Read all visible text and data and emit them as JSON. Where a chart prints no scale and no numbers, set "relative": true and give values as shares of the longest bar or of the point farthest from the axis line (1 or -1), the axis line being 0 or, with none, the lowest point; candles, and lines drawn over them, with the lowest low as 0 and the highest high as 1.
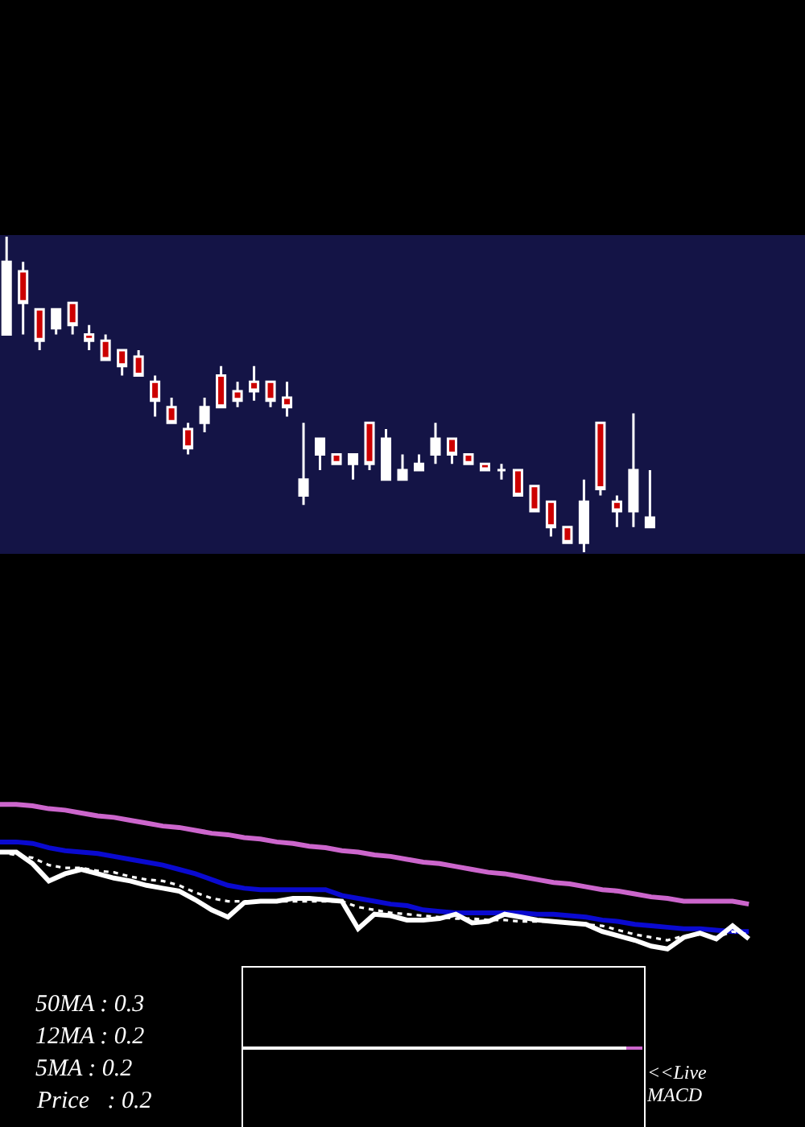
{
  "chart_data": [
    {
      "type": "candlestick",
      "relative": true,
      "categories": [
        null,
        null,
        null,
        null,
        null,
        null,
        null,
        null,
        null,
        null,
        null,
        null,
        null,
        null,
        null,
        null,
        null,
        null,
        null,
        null,
        null,
        null,
        null,
        null,
        null,
        null,
        null,
        null,
        null,
        null,
        null,
        null,
        null,
        null,
        null,
        null,
        null,
        null,
        null,
        null
      ],
      "ohlc": [
        [
          0.69,
          1,
          0.69,
          0.92
        ],
        [
          0.89,
          0.92,
          0.69,
          0.79
        ],
        [
          0.77,
          0.77,
          0.64,
          0.67
        ],
        [
          0.71,
          0.77,
          0.69,
          0.77
        ],
        [
          0.79,
          0.79,
          0.69,
          0.72
        ],
        [
          0.69,
          0.72,
          0.64,
          0.67
        ],
        [
          0.67,
          0.69,
          0.61,
          0.61
        ],
        [
          0.64,
          0.64,
          0.56,
          0.59
        ],
        [
          0.62,
          0.64,
          0.56,
          0.56
        ],
        [
          0.54,
          0.56,
          0.43,
          0.48
        ],
        [
          0.46,
          0.49,
          0.41,
          0.41
        ],
        [
          0.39,
          0.41,
          0.31,
          0.33
        ],
        [
          0.41,
          0.49,
          0.38,
          0.46
        ],
        [
          0.56,
          0.59,
          0.46,
          0.46
        ],
        [
          0.51,
          0.54,
          0.46,
          0.48
        ],
        [
          0.54,
          0.59,
          0.48,
          0.51
        ],
        [
          0.54,
          0.54,
          0.46,
          0.48
        ],
        [
          0.49,
          0.54,
          0.43,
          0.46
        ],
        [
          0.18,
          0.41,
          0.15,
          0.23
        ],
        [
          0.31,
          0.36,
          0.26,
          0.36
        ],
        [
          0.31,
          0.31,
          0.28,
          0.28
        ],
        [
          0.28,
          0.31,
          0.23,
          0.31
        ],
        [
          0.41,
          0.41,
          0.26,
          0.28
        ],
        [
          0.23,
          0.39,
          0.23,
          0.36
        ],
        [
          0.23,
          0.31,
          0.23,
          0.26
        ],
        [
          0.26,
          0.31,
          0.26,
          0.28
        ],
        [
          0.31,
          0.41,
          0.28,
          0.36
        ],
        [
          0.36,
          0.36,
          0.28,
          0.31
        ],
        [
          0.31,
          0.31,
          0.28,
          0.28
        ],
        [
          0.28,
          0.28,
          0.26,
          0.26
        ],
        [
          0.26,
          0.28,
          0.23,
          0.26
        ],
        [
          0.26,
          0.26,
          0.18,
          0.18
        ],
        [
          0.21,
          0.21,
          0.13,
          0.13
        ],
        [
          0.16,
          0.16,
          0.05,
          0.08
        ],
        [
          0.08,
          0.08,
          0.03,
          0.03
        ],
        [
          0.03,
          0.23,
          0,
          0.16
        ],
        [
          0.41,
          0.41,
          0.18,
          0.2
        ],
        [
          0.16,
          0.18,
          0.08,
          0.13
        ],
        [
          0.13,
          0.44,
          0.08,
          0.26
        ],
        [
          0.08,
          0.26,
          0.08,
          0.11
        ]
      ],
      "colors": [
        "#ffffff",
        "#cc0000",
        "#cc0000",
        "#ffffff",
        "#cc0000",
        "#cc0000",
        "#cc0000",
        "#cc0000",
        "#cc0000",
        "#cc0000",
        "#cc0000",
        "#cc0000",
        "#ffffff",
        "#cc0000",
        "#cc0000",
        "#cc0000",
        "#cc0000",
        "#cc0000",
        "#ffffff",
        "#ffffff",
        "#cc0000",
        "#ffffff",
        "#cc0000",
        "#ffffff",
        "#ffffff",
        "#ffffff",
        "#ffffff",
        "#cc0000",
        "#cc0000",
        "#cc0000",
        "#ffffff",
        "#cc0000",
        "#cc0000",
        "#cc0000",
        "#cc0000",
        "#ffffff",
        "#cc0000",
        "#cc0000",
        "#ffffff",
        "#ffffff"
      ]
    },
    {
      "type": "line",
      "relative": true,
      "categories": [
        null,
        null,
        null,
        null,
        null,
        null,
        null,
        null,
        null,
        null,
        null,
        null,
        null,
        null,
        null,
        null,
        null,
        null,
        null,
        null,
        null,
        null,
        null,
        null,
        null,
        null,
        null,
        null,
        null,
        null,
        null,
        null,
        null,
        null,
        null,
        null,
        null,
        null,
        null,
        null,
        null,
        null,
        null,
        null,
        null,
        null,
        null
      ],
      "series": [
        {
          "color": "#cc66cc",
          "values": [
            1,
            1,
            0.99,
            0.97,
            0.96,
            0.94,
            0.92,
            0.91,
            0.89,
            0.87,
            0.85,
            0.84,
            0.82,
            0.8,
            0.79,
            0.77,
            0.76,
            0.74,
            0.73,
            0.71,
            0.7,
            0.68,
            0.67,
            0.65,
            0.64,
            0.62,
            0.6,
            0.59,
            0.57,
            0.55,
            0.53,
            0.52,
            0.5,
            0.48,
            0.46,
            0.45,
            0.43,
            0.41,
            0.4,
            0.38,
            0.36,
            0.35,
            0.33,
            0.33,
            0.33,
            0.33,
            0.31
          ]
        },
        {
          "color": "#0a0ad0",
          "values": [
            0.74,
            0.74,
            0.73,
            0.7,
            0.68,
            0.67,
            0.66,
            0.64,
            0.62,
            0.6,
            0.58,
            0.55,
            0.52,
            0.48,
            0.44,
            0.42,
            0.41,
            0.41,
            0.41,
            0.41,
            0.41,
            0.37,
            0.35,
            0.33,
            0.31,
            0.3,
            0.27,
            0.26,
            0.25,
            0.25,
            0.25,
            0.25,
            0.25,
            0.24,
            0.24,
            0.23,
            0.22,
            0.2,
            0.19,
            0.17,
            0.16,
            0.15,
            0.14,
            0.14,
            0.13,
            0.12,
            0.12
          ]
        },
        {
          "color": "#ffffff",
          "line_style": "dotted",
          "values": [
            0.67,
            0.65,
            0.63,
            0.58,
            0.56,
            0.56,
            0.54,
            0.53,
            0.5,
            0.48,
            0.47,
            0.44,
            0.39,
            0.35,
            0.33,
            0.33,
            0.33,
            0.33,
            0.33,
            0.33,
            0.33,
            0.33,
            0.29,
            0.27,
            0.25,
            0.24,
            0.23,
            0.22,
            0.21,
            0.21,
            0.2,
            0.2,
            0.19,
            0.19,
            0.19,
            0.18,
            0.17,
            0.16,
            0.13,
            0.1,
            0.08,
            0.06,
            0.09,
            0.1,
            0.08,
            0.12,
            0.1
          ]
        },
        {
          "color": "#ffffff",
          "values": [
            0.67,
            0.67,
            0.59,
            0.47,
            0.52,
            0.55,
            0.52,
            0.49,
            0.47,
            0.44,
            0.42,
            0.4,
            0.34,
            0.27,
            0.22,
            0.32,
            0.33,
            0.33,
            0.35,
            0.35,
            0.34,
            0.33,
            0.14,
            0.24,
            0.23,
            0.2,
            0.2,
            0.21,
            0.24,
            0.18,
            0.19,
            0.24,
            0.22,
            0.2,
            0.19,
            0.18,
            0.17,
            0.12,
            0.09,
            0.06,
            0.02,
            0,
            0.08,
            0.11,
            0.07,
            0.16,
            0.07
          ]
        }
      ],
      "annotations": [
        "50MA : 0.3",
        "12MA : 0.2",
        "5MA : 0.2",
        "Price   : 0.2"
      ]
    },
    {
      "type": "other",
      "annotations": [
        "<<Live\nMACD"
      ]
    }
  ]
}
